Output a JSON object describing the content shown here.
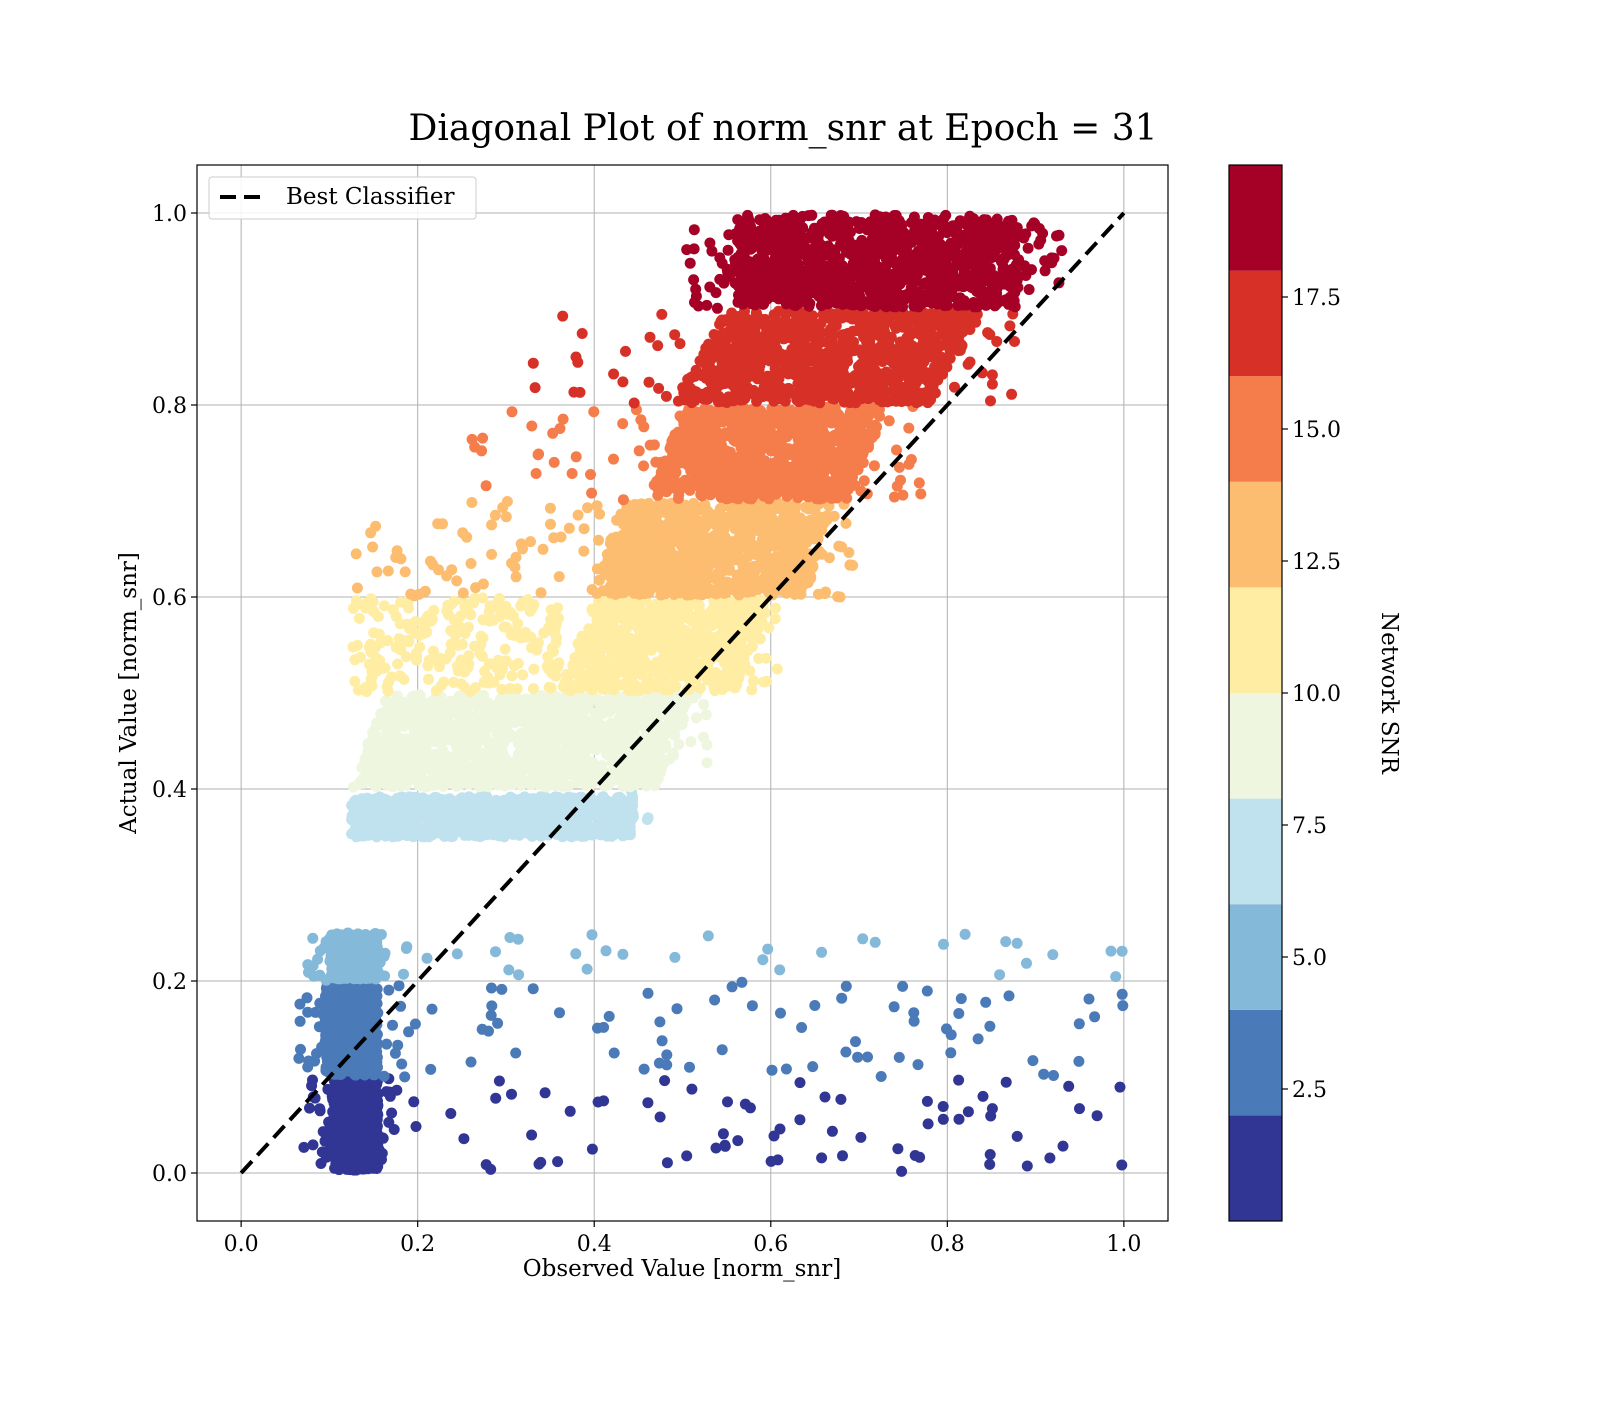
{
  "chart_data": {
    "type": "scatter",
    "title": "Diagonal Plot of norm_snr at Epoch = 31",
    "xlabel": "Observed Value [norm_snr]",
    "ylabel": "Actual Value [norm_snr]",
    "xlim": [
      -0.05,
      1.05
    ],
    "ylim": [
      -0.05,
      1.05
    ],
    "xticks": [
      "0.0",
      "0.2",
      "0.4",
      "0.6",
      "0.8",
      "1.0"
    ],
    "yticks": [
      "0.0",
      "0.2",
      "0.4",
      "0.6",
      "0.8",
      "1.0"
    ],
    "grid": true,
    "legend": {
      "placement": "top-left",
      "entries": [
        "Best Classifier"
      ]
    },
    "reference_line": {
      "name": "Best Classifier",
      "style": "dashed",
      "color": "#000000",
      "from": [
        0,
        0
      ],
      "to": [
        1,
        1
      ]
    },
    "colorbar": {
      "label": "Network SNR",
      "range": [
        0,
        20
      ],
      "ticks": [
        "2.5",
        "5.0",
        "7.5",
        "10.0",
        "12.5",
        "15.0",
        "17.5"
      ],
      "bins": [
        {
          "from": 0,
          "to": 2,
          "color": "#313695"
        },
        {
          "from": 2,
          "to": 4,
          "color": "#4a7ab7"
        },
        {
          "from": 4,
          "to": 6,
          "color": "#85b9d9"
        },
        {
          "from": 6,
          "to": 8,
          "color": "#c0e2ee"
        },
        {
          "from": 8,
          "to": 10,
          "color": "#eef6df"
        },
        {
          "from": 10,
          "to": 12,
          "color": "#feeda3"
        },
        {
          "from": 12,
          "to": 14,
          "color": "#fdbd70"
        },
        {
          "from": 14,
          "to": 16,
          "color": "#f57d4b"
        },
        {
          "from": 16,
          "to": 18,
          "color": "#d73027"
        },
        {
          "from": 18,
          "to": 20,
          "color": "#a50026"
        }
      ]
    },
    "point_groups": [
      {
        "snr_bin": "0-2",
        "color": "#313695",
        "y_range": [
          0.0,
          0.1
        ],
        "dense_x_range": [
          0.1,
          0.16
        ],
        "approx_count": 4000
      },
      {
        "snr_bin": "2-4",
        "color": "#4a7ab7",
        "y_range": [
          0.1,
          0.2
        ],
        "dense_x_range": [
          0.09,
          0.16
        ],
        "approx_count": 2500
      },
      {
        "snr_bin": "4-6",
        "color": "#85b9d9",
        "y_range": [
          0.2,
          0.25
        ],
        "dense_x_range": [
          0.1,
          0.16
        ],
        "approx_count": 1500
      },
      {
        "snr_bin": "6-8",
        "color": "#c0e2ee",
        "y_range": [
          0.35,
          0.4
        ],
        "dense_x_range": [
          0.12,
          0.45
        ],
        "approx_count": 3000
      },
      {
        "snr_bin": "8-10",
        "color": "#eef6df",
        "y_range": [
          0.4,
          0.5
        ],
        "dense_x_range": [
          0.12,
          0.52
        ],
        "approx_count": 4000
      },
      {
        "snr_bin": "10-12",
        "color": "#feeda3",
        "y_range": [
          0.5,
          0.6
        ],
        "dense_x_range": [
          0.35,
          0.58
        ],
        "approx_count": 3000
      },
      {
        "snr_bin": "12-14",
        "color": "#fdbd70",
        "y_range": [
          0.6,
          0.7
        ],
        "dense_x_range": [
          0.38,
          0.66
        ],
        "approx_count": 3000
      },
      {
        "snr_bin": "14-16",
        "color": "#f57d4b",
        "y_range": [
          0.7,
          0.8
        ],
        "dense_x_range": [
          0.44,
          0.72
        ],
        "approx_count": 3000
      },
      {
        "snr_bin": "16-18",
        "color": "#d73027",
        "y_range": [
          0.8,
          0.9
        ],
        "dense_x_range": [
          0.48,
          0.8
        ],
        "approx_count": 3000
      },
      {
        "snr_bin": "18-20",
        "color": "#a50026",
        "y_range": [
          0.9,
          1.0
        ],
        "dense_x_range": [
          0.55,
          0.88
        ],
        "approx_count": 3000
      }
    ]
  }
}
